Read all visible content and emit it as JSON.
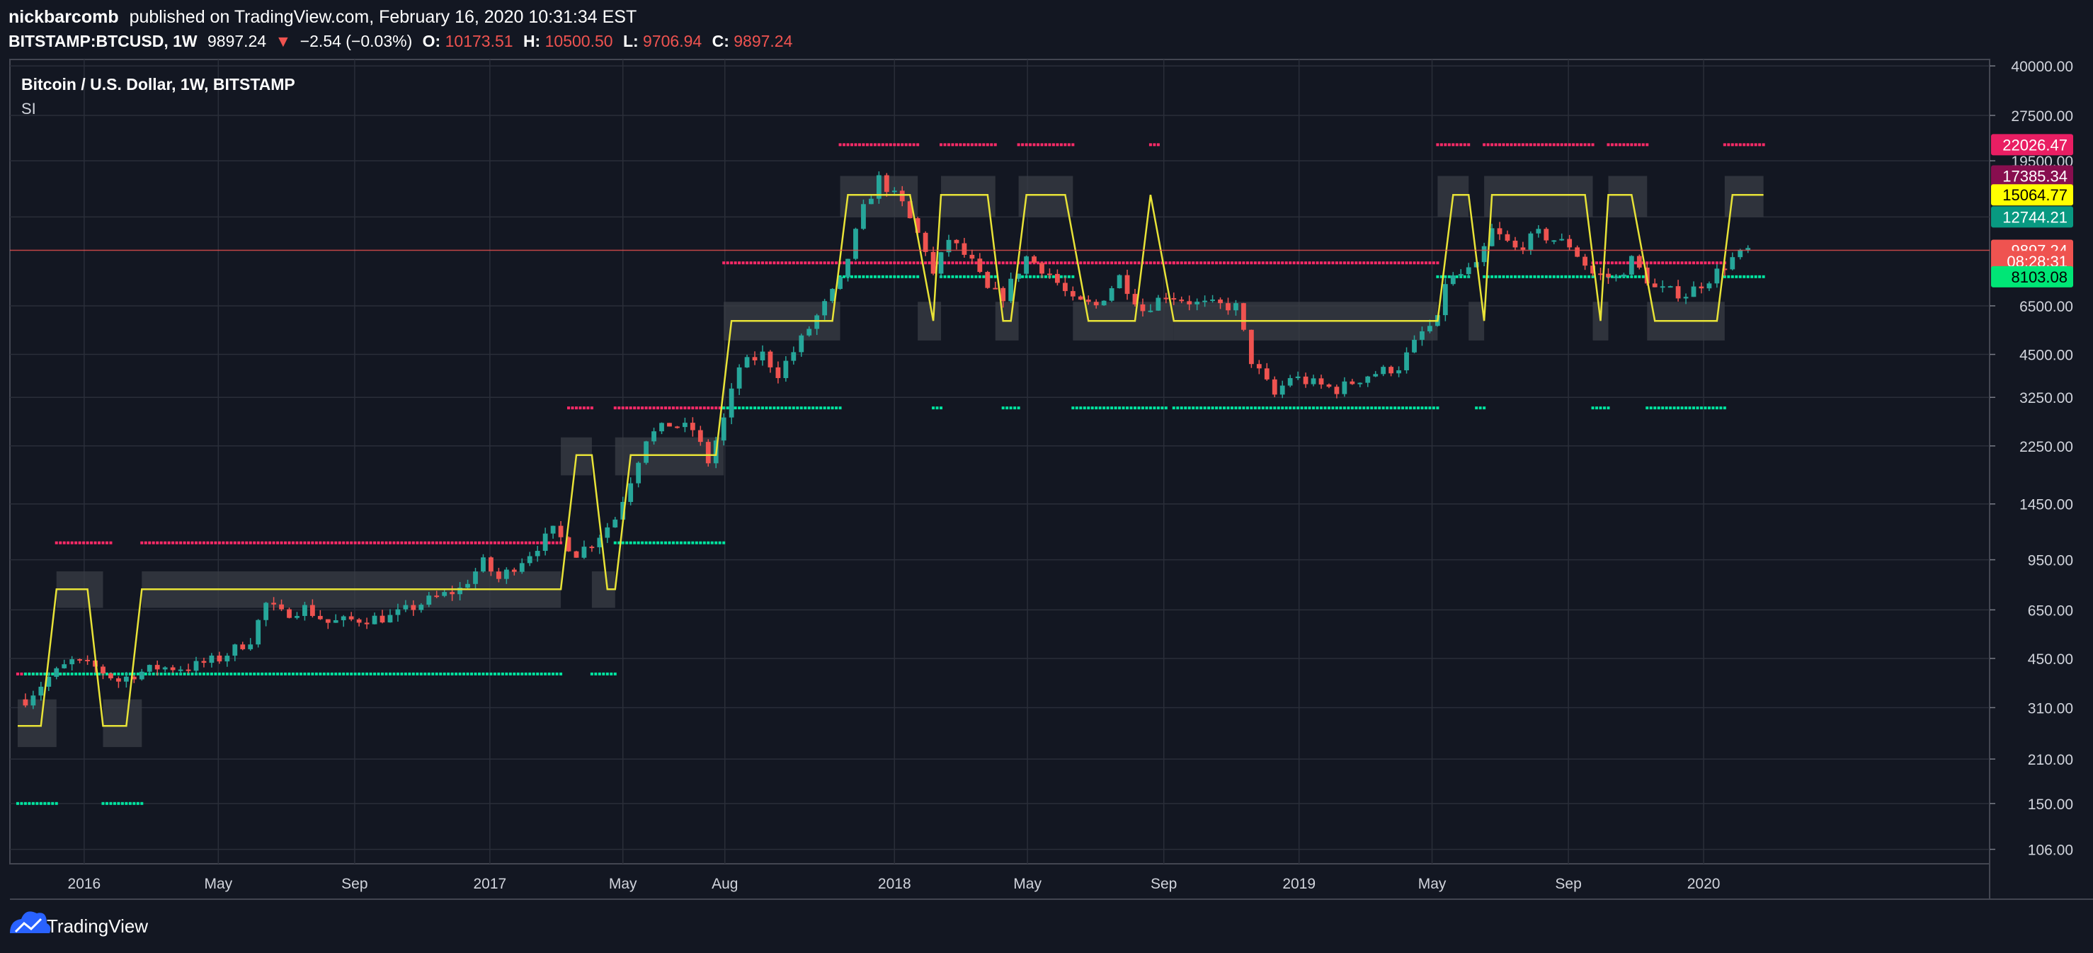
{
  "header": {
    "author": "nickbarcomb",
    "published_text": "published on TradingView.com, February 16, 2020 10:31:34 EST",
    "symbol": "BITSTAMP:BTCUSD, 1W",
    "last": "9897.24",
    "change_arrow": "▼",
    "change": "−2.54 (−0.03%)",
    "o_label": "O:",
    "o_value": "10173.51",
    "h_label": "H:",
    "h_value": "10500.50",
    "l_label": "L:",
    "l_value": "9706.94",
    "c_label": "C:",
    "c_value": "9897.24"
  },
  "legend": {
    "title": "Bitcoin / U.S. Dollar, 1W, BITSTAMP",
    "indicator": "SI"
  },
  "footer": {
    "brand": "TradingView"
  },
  "colors": {
    "background": "#131722",
    "grid": "#2a2e39",
    "up": "#26a69a",
    "down": "#ef5350",
    "si_line": "#e8e337",
    "band": "#3a3d46",
    "resistance_dots": "#ff2a68",
    "support_dots": "#00e5a0",
    "text": "#d1d4dc"
  },
  "chart_data": {
    "type": "candlestick",
    "interval": "1W",
    "y_scale": "log",
    "ylim": [
      95,
      42000
    ],
    "x_ticks": [
      {
        "label": "2016",
        "date": "2016-01-01"
      },
      {
        "label": "May",
        "date": "2016-05-01"
      },
      {
        "label": "Sep",
        "date": "2016-09-01"
      },
      {
        "label": "2017",
        "date": "2017-01-01"
      },
      {
        "label": "May",
        "date": "2017-05-01"
      },
      {
        "label": "Aug",
        "date": "2017-08-01"
      },
      {
        "label": "2018",
        "date": "2018-01-01"
      },
      {
        "label": "May",
        "date": "2018-05-01"
      },
      {
        "label": "Sep",
        "date": "2018-09-01"
      },
      {
        "label": "2019",
        "date": "2019-01-01"
      },
      {
        "label": "May",
        "date": "2019-05-01"
      },
      {
        "label": "Sep",
        "date": "2019-09-01"
      },
      {
        "label": "2020",
        "date": "2020-01-01"
      }
    ],
    "y_ticks": [
      40000,
      27500,
      19500,
      12744.21,
      6500,
      4500,
      3250,
      2250,
      1450,
      950,
      650,
      450,
      310,
      210,
      150,
      106
    ],
    "y_tick_labels": [
      "40000.00",
      "27500.00",
      "19500.00",
      "",
      "6500.00",
      "4500.00",
      "3250.00",
      "2250.00",
      "1450.00",
      "950.00",
      "650.00",
      "450.00",
      "310.00",
      "210.00",
      "150.00",
      "106.00"
    ],
    "price_tags": [
      {
        "value": 22026.47,
        "label": "22026.47",
        "bg": "#e91e63",
        "fg": "#ffffff"
      },
      {
        "value": 17385.34,
        "label": "17385.34",
        "bg": "#880e4f",
        "fg": "#ffffff"
      },
      {
        "value": 15064.77,
        "label": "15064.77",
        "bg": "#ffff00",
        "fg": "#000000"
      },
      {
        "value": 12744.21,
        "label": "12744.21",
        "bg": "#089981",
        "fg": "#ffffff"
      },
      {
        "value": 9897.24,
        "label": "9897.24",
        "bg": "#ef5350",
        "fg": "#ffffff"
      },
      {
        "value": 9100,
        "label": "08:28:31",
        "bg": "#ef5350",
        "fg": "#ffffff"
      },
      {
        "value": 8103.08,
        "label": "8103.08",
        "bg": "#00e676",
        "fg": "#000000"
      }
    ],
    "current_price": 9897.24,
    "price_path": [
      [
        "2015-11-09",
        330
      ],
      [
        "2015-11-30",
        390
      ],
      [
        "2015-12-21",
        440
      ],
      [
        "2016-01-11",
        420
      ],
      [
        "2016-02-01",
        380
      ],
      [
        "2016-02-15",
        400
      ],
      [
        "2016-03-07",
        420
      ],
      [
        "2016-04-04",
        420
      ],
      [
        "2016-05-02",
        450
      ],
      [
        "2016-05-30",
        520
      ],
      [
        "2016-06-13",
        680
      ],
      [
        "2016-06-27",
        630
      ],
      [
        "2016-07-18",
        660
      ],
      [
        "2016-08-08",
        590
      ],
      [
        "2016-09-05",
        605
      ],
      [
        "2016-10-03",
        615
      ],
      [
        "2016-11-07",
        700
      ],
      [
        "2016-12-05",
        760
      ],
      [
        "2016-12-26",
        930
      ],
      [
        "2017-01-09",
        820
      ],
      [
        "2017-02-06",
        1000
      ],
      [
        "2017-02-27",
        1180
      ],
      [
        "2017-03-20",
        1000
      ],
      [
        "2017-04-03",
        1080
      ],
      [
        "2017-04-24",
        1300
      ],
      [
        "2017-05-08",
        1750
      ],
      [
        "2017-05-22",
        2400
      ],
      [
        "2017-06-12",
        2650
      ],
      [
        "2017-07-03",
        2550
      ],
      [
        "2017-07-17",
        2000
      ],
      [
        "2017-07-31",
        2750
      ],
      [
        "2017-08-14",
        4100
      ],
      [
        "2017-09-04",
        4500
      ],
      [
        "2017-09-18",
        3900
      ],
      [
        "2017-10-02",
        4600
      ],
      [
        "2017-10-23",
        6000
      ],
      [
        "2017-11-13",
        7800
      ],
      [
        "2017-12-04",
        13500
      ],
      [
        "2017-12-18",
        17000
      ],
      [
        "2018-01-08",
        14000
      ],
      [
        "2018-01-29",
        10000
      ],
      [
        "2018-02-05",
        8200
      ],
      [
        "2018-02-19",
        10800
      ],
      [
        "2018-03-12",
        9000
      ],
      [
        "2018-03-26",
        7300
      ],
      [
        "2018-04-09",
        7000
      ],
      [
        "2018-04-30",
        9400
      ],
      [
        "2018-05-21",
        8300
      ],
      [
        "2018-06-11",
        6700
      ],
      [
        "2018-07-02",
        6500
      ],
      [
        "2018-07-23",
        8100
      ],
      [
        "2018-08-13",
        6300
      ],
      [
        "2018-09-03",
        7100
      ],
      [
        "2018-10-01",
        6600
      ],
      [
        "2018-11-05",
        6450
      ],
      [
        "2018-11-19",
        4300
      ],
      [
        "2018-12-10",
        3300
      ],
      [
        "2018-12-24",
        3800
      ],
      [
        "2019-01-21",
        3550
      ],
      [
        "2019-02-04",
        3450
      ],
      [
        "2019-03-04",
        3850
      ],
      [
        "2019-04-01",
        4100
      ],
      [
        "2019-04-22",
        5300
      ],
      [
        "2019-05-06",
        5800
      ],
      [
        "2019-05-13",
        7800
      ],
      [
        "2019-06-10",
        8700
      ],
      [
        "2019-06-24",
        11500
      ],
      [
        "2019-07-15",
        10000
      ],
      [
        "2019-08-05",
        11200
      ],
      [
        "2019-09-02",
        10300
      ],
      [
        "2019-09-23",
        8300
      ],
      [
        "2019-10-14",
        8000
      ],
      [
        "2019-10-28",
        9200
      ],
      [
        "2019-11-18",
        7400
      ],
      [
        "2019-12-16",
        7100
      ],
      [
        "2020-01-06",
        8000
      ],
      [
        "2020-01-27",
        9300
      ],
      [
        "2020-02-10",
        9897
      ]
    ],
    "si_line": [
      [
        "2015-11-02",
        270
      ],
      [
        "2015-11-23",
        270
      ],
      [
        "2015-12-07",
        760
      ],
      [
        "2016-01-04",
        760
      ],
      [
        "2016-01-18",
        270
      ],
      [
        "2016-02-08",
        270
      ],
      [
        "2016-02-22",
        760
      ],
      [
        "2017-03-06",
        760
      ],
      [
        "2017-03-20",
        2100
      ],
      [
        "2017-04-03",
        2100
      ],
      [
        "2017-04-17",
        760
      ],
      [
        "2017-04-24",
        760
      ],
      [
        "2017-05-08",
        2100
      ],
      [
        "2017-07-24",
        2100
      ],
      [
        "2017-08-07",
        5800
      ],
      [
        "2017-11-06",
        5800
      ],
      [
        "2017-11-20",
        15064
      ],
      [
        "2018-01-15",
        15064
      ],
      [
        "2018-02-05",
        5800
      ],
      [
        "2018-02-12",
        15064
      ],
      [
        "2018-03-26",
        15064
      ],
      [
        "2018-04-09",
        5800
      ],
      [
        "2018-04-16",
        5800
      ],
      [
        "2018-04-30",
        15064
      ],
      [
        "2018-06-04",
        15064
      ],
      [
        "2018-06-25",
        5800
      ],
      [
        "2018-08-06",
        5800
      ],
      [
        "2018-08-20",
        15064
      ],
      [
        "2018-09-10",
        5800
      ],
      [
        "2019-05-06",
        5800
      ],
      [
        "2019-05-20",
        15064
      ],
      [
        "2019-06-03",
        15064
      ],
      [
        "2019-06-17",
        5800
      ],
      [
        "2019-06-24",
        15064
      ],
      [
        "2019-09-16",
        15064
      ],
      [
        "2019-09-30",
        5800
      ],
      [
        "2019-10-07",
        15064
      ],
      [
        "2019-10-28",
        15064
      ],
      [
        "2019-11-18",
        5800
      ],
      [
        "2020-01-13",
        5800
      ],
      [
        "2020-01-27",
        15064
      ],
      [
        "2020-02-24",
        15064
      ]
    ],
    "bands": [
      {
        "start": "2015-11-02",
        "end": "2015-12-07",
        "lo": 230,
        "hi": 330
      },
      {
        "start": "2015-12-07",
        "end": "2016-01-18",
        "lo": 660,
        "hi": 870
      },
      {
        "start": "2016-01-18",
        "end": "2016-02-22",
        "lo": 230,
        "hi": 330
      },
      {
        "start": "2016-02-22",
        "end": "2017-03-06",
        "lo": 660,
        "hi": 870
      },
      {
        "start": "2017-03-06",
        "end": "2017-04-03",
        "lo": 1800,
        "hi": 2400
      },
      {
        "start": "2017-04-03",
        "end": "2017-04-24",
        "lo": 660,
        "hi": 870
      },
      {
        "start": "2017-04-24",
        "end": "2017-07-31",
        "lo": 1800,
        "hi": 2400
      },
      {
        "start": "2017-07-31",
        "end": "2017-11-13",
        "lo": 5000,
        "hi": 6700
      },
      {
        "start": "2017-11-13",
        "end": "2018-01-22",
        "lo": 12744,
        "hi": 17385
      },
      {
        "start": "2018-01-22",
        "end": "2018-02-12",
        "lo": 5000,
        "hi": 6700
      },
      {
        "start": "2018-02-12",
        "end": "2018-04-02",
        "lo": 12744,
        "hi": 17385
      },
      {
        "start": "2018-04-02",
        "end": "2018-04-23",
        "lo": 5000,
        "hi": 6700
      },
      {
        "start": "2018-04-23",
        "end": "2018-06-11",
        "lo": 12744,
        "hi": 17385
      },
      {
        "start": "2018-06-11",
        "end": "2018-09-10",
        "lo": 5000,
        "hi": 6700
      },
      {
        "start": "2018-09-10",
        "end": "2019-05-06",
        "lo": 5000,
        "hi": 6700
      },
      {
        "start": "2019-05-06",
        "end": "2019-06-03",
        "lo": 12744,
        "hi": 17385
      },
      {
        "start": "2019-06-03",
        "end": "2019-06-17",
        "lo": 5000,
        "hi": 6700
      },
      {
        "start": "2019-06-17",
        "end": "2019-09-23",
        "lo": 12744,
        "hi": 17385
      },
      {
        "start": "2019-09-23",
        "end": "2019-10-07",
        "lo": 5000,
        "hi": 6700
      },
      {
        "start": "2019-10-07",
        "end": "2019-11-11",
        "lo": 12744,
        "hi": 17385
      },
      {
        "start": "2019-11-11",
        "end": "2020-01-20",
        "lo": 5000,
        "hi": 6700
      },
      {
        "start": "2020-01-20",
        "end": "2020-02-24",
        "lo": 12744,
        "hi": 17385
      }
    ],
    "resistance_dots": [
      {
        "start": "2015-11-02",
        "end": "2015-12-14",
        "value": 400
      },
      {
        "start": "2015-12-07",
        "end": "2016-01-25",
        "value": 1080
      },
      {
        "start": "2016-02-22",
        "end": "2017-03-06",
        "value": 1080
      },
      {
        "start": "2017-03-13",
        "end": "2017-04-03",
        "value": 3000
      },
      {
        "start": "2017-04-24",
        "end": "2017-07-31",
        "value": 3000
      },
      {
        "start": "2017-07-31",
        "end": "2018-09-10",
        "value": 9000
      },
      {
        "start": "2017-11-13",
        "end": "2018-01-22",
        "value": 22026
      },
      {
        "start": "2018-02-12",
        "end": "2018-04-02",
        "value": 22026
      },
      {
        "start": "2018-04-23",
        "end": "2018-06-11",
        "value": 22026
      },
      {
        "start": "2018-08-20",
        "end": "2018-08-27",
        "value": 22026
      },
      {
        "start": "2018-09-10",
        "end": "2019-05-06",
        "value": 9000
      },
      {
        "start": "2019-05-06",
        "end": "2019-06-03",
        "value": 22026
      },
      {
        "start": "2019-06-17",
        "end": "2019-09-23",
        "value": 22026
      },
      {
        "start": "2019-09-23",
        "end": "2020-01-20",
        "value": 9000
      },
      {
        "start": "2019-10-07",
        "end": "2019-11-11",
        "value": 22026
      },
      {
        "start": "2020-01-20",
        "end": "2020-02-24",
        "value": 22026
      }
    ],
    "support_dots": [
      {
        "start": "2015-11-02",
        "end": "2015-12-07",
        "value": 150
      },
      {
        "start": "2016-01-18",
        "end": "2016-02-22",
        "value": 150
      },
      {
        "start": "2015-11-09",
        "end": "2017-03-06",
        "value": 400
      },
      {
        "start": "2017-04-03",
        "end": "2017-04-24",
        "value": 400
      },
      {
        "start": "2017-04-24",
        "end": "2017-07-31",
        "value": 1080
      },
      {
        "start": "2017-07-31",
        "end": "2017-11-13",
        "value": 3000
      },
      {
        "start": "2017-11-13",
        "end": "2018-01-22",
        "value": 8103
      },
      {
        "start": "2018-02-12",
        "end": "2018-04-02",
        "value": 8103
      },
      {
        "start": "2018-04-23",
        "end": "2018-06-11",
        "value": 8103
      },
      {
        "start": "2018-02-05",
        "end": "2018-02-12",
        "value": 3000
      },
      {
        "start": "2018-04-09",
        "end": "2018-04-23",
        "value": 3000
      },
      {
        "start": "2018-06-11",
        "end": "2018-09-03",
        "value": 3000
      },
      {
        "start": "2018-09-10",
        "end": "2019-05-06",
        "value": 3000
      },
      {
        "start": "2019-05-06",
        "end": "2019-06-03",
        "value": 8103
      },
      {
        "start": "2019-06-10",
        "end": "2019-06-17",
        "value": 3000
      },
      {
        "start": "2019-06-17",
        "end": "2019-09-23",
        "value": 8103
      },
      {
        "start": "2019-09-23",
        "end": "2019-10-07",
        "value": 3000
      },
      {
        "start": "2019-10-07",
        "end": "2019-11-11",
        "value": 8103
      },
      {
        "start": "2019-11-11",
        "end": "2020-01-20",
        "value": 3000
      },
      {
        "start": "2020-01-20",
        "end": "2020-02-24",
        "value": 8103
      }
    ]
  }
}
